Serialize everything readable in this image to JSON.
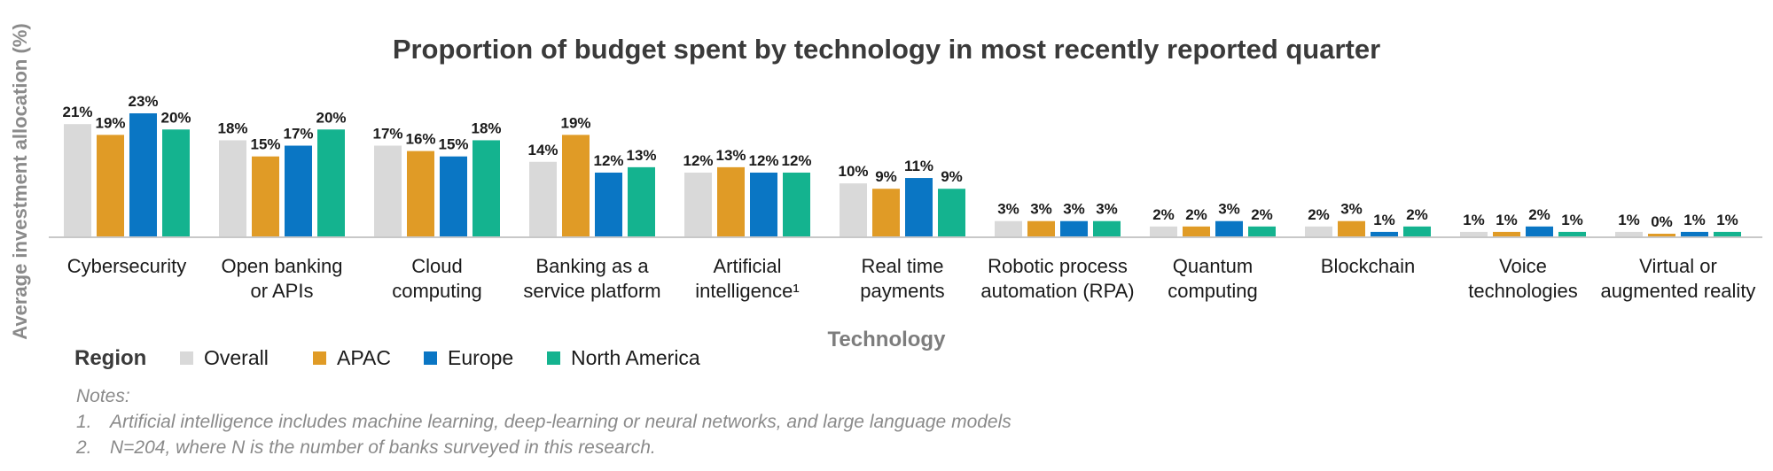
{
  "chart_data": {
    "type": "bar",
    "title": "Proportion of budget spent by technology in most recently reported quarter",
    "xlabel": "Technology",
    "ylabel": "Average investment allocation (%)",
    "categories": [
      [
        "Cybersecurity"
      ],
      [
        "Open banking",
        "or APIs"
      ],
      [
        "Cloud",
        "computing"
      ],
      [
        "Banking as a",
        "service platform"
      ],
      [
        "Artificial",
        "intelligence¹"
      ],
      [
        "Real time",
        "payments"
      ],
      [
        "Robotic process",
        "automation (RPA)"
      ],
      [
        "Quantum",
        "computing"
      ],
      [
        "Blockchain"
      ],
      [
        "Voice",
        "technologies"
      ],
      [
        "Virtual or",
        "augmented reality"
      ]
    ],
    "series": [
      {
        "name": "Overall",
        "color": "#d9d9d9",
        "values": [
          21,
          18,
          17,
          14,
          12,
          10,
          3,
          2,
          2,
          1,
          1
        ]
      },
      {
        "name": "APAC",
        "color": "#e09b26",
        "values": [
          19,
          15,
          16,
          19,
          13,
          9,
          3,
          2,
          3,
          1,
          0
        ]
      },
      {
        "name": "Europe",
        "color": "#0a76c4",
        "values": [
          23,
          17,
          15,
          12,
          12,
          11,
          3,
          3,
          1,
          2,
          1
        ]
      },
      {
        "name": "North America",
        "color": "#14b38f",
        "values": [
          20,
          20,
          18,
          13,
          12,
          9,
          3,
          2,
          2,
          1,
          1
        ]
      }
    ],
    "value_suffix": "%",
    "ylim": [
      0,
      23
    ],
    "grid": false,
    "legend": {
      "title": "Region",
      "placement": "bottom-left"
    }
  },
  "notes": {
    "heading": "Notes:",
    "items": [
      {
        "num": "1.",
        "text": "Artificial intelligence includes machine learning, deep-learning or neural networks, and large language models"
      },
      {
        "num": "2.",
        "text": "N=204, where N is the number of banks surveyed in this research."
      }
    ]
  }
}
